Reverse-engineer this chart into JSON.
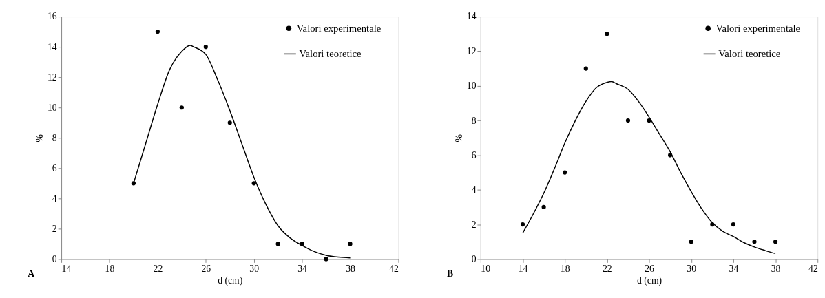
{
  "chart_data": [
    {
      "type": "scatter",
      "xlabel": "d (cm)",
      "ylabel": "%",
      "annotations": [
        "A"
      ],
      "legend": "top right",
      "grid": false,
      "xlim": [
        14,
        42
      ],
      "xticks": [
        14,
        18,
        22,
        26,
        30,
        34,
        38,
        42
      ],
      "ylim": [
        0,
        16
      ],
      "yticks": [
        0,
        2,
        4,
        6,
        8,
        10,
        12,
        14,
        16
      ],
      "series": [
        {
          "name": "Valori experimentale",
          "color": "#000000",
          "marker": "circle",
          "x": [
            20,
            22,
            24,
            26,
            28,
            30,
            32,
            34,
            36,
            38
          ],
          "values": [
            5,
            15,
            10,
            14,
            9,
            5,
            1,
            1,
            0,
            1
          ]
        },
        {
          "name": "Valori teoretice",
          "type": "line",
          "color": "#000000",
          "line_style": "solid",
          "marker": "none",
          "x": [
            20,
            21,
            22,
            23,
            24,
            24.7,
            25,
            26,
            27,
            28,
            29,
            30,
            31,
            32,
            33,
            34,
            35,
            36,
            37,
            38
          ],
          "values": [
            5,
            7.6,
            10.2,
            12.5,
            13.7,
            14.1,
            14.0,
            13.5,
            11.8,
            9.8,
            7.6,
            5.4,
            3.6,
            2.2,
            1.4,
            0.9,
            0.5,
            0.25,
            0.13,
            0.08
          ]
        }
      ]
    },
    {
      "type": "scatter",
      "xlabel": "d (cm)",
      "ylabel": "%",
      "annotations": [
        "B"
      ],
      "legend": "top right",
      "grid": false,
      "xlim": [
        10,
        42
      ],
      "xticks": [
        10,
        14,
        18,
        22,
        26,
        30,
        34,
        38,
        42
      ],
      "ylim": [
        0,
        14
      ],
      "yticks": [
        0,
        2,
        4,
        6,
        8,
        10,
        12,
        14
      ],
      "series": [
        {
          "name": "Valori experimentale",
          "color": "#000000",
          "marker": "circle",
          "x": [
            14,
            16,
            18,
            20,
            22,
            24,
            26,
            28,
            30,
            32,
            34,
            36,
            38
          ],
          "values": [
            2,
            3,
            5,
            11,
            13,
            8,
            8,
            6,
            1,
            2,
            2,
            1,
            1
          ]
        },
        {
          "name": "Valori teoretice",
          "type": "line",
          "color": "#000000",
          "line_style": "solid",
          "marker": "none",
          "x": [
            14,
            15,
            16,
            17,
            18,
            19,
            20,
            21,
            22,
            22.4,
            23,
            24,
            25,
            26,
            27,
            28,
            29,
            30,
            31,
            32,
            33,
            34,
            35,
            36,
            37,
            38
          ],
          "values": [
            1.5,
            2.6,
            3.8,
            5.2,
            6.7,
            8.0,
            9.1,
            9.9,
            10.2,
            10.25,
            10.1,
            9.8,
            9.1,
            8.2,
            7.2,
            6.2,
            5.0,
            3.9,
            2.9,
            2.1,
            1.6,
            1.3,
            0.95,
            0.7,
            0.5,
            0.32
          ]
        }
      ]
    }
  ]
}
